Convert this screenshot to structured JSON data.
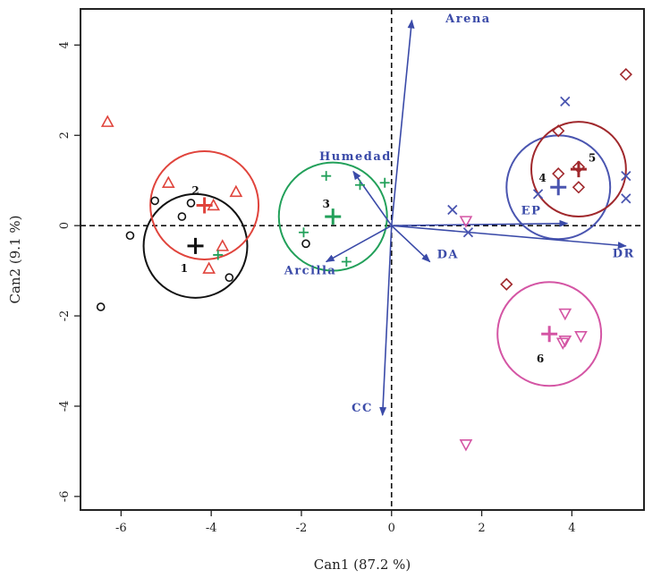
{
  "chart_data": {
    "type": "scatter",
    "xlabel": "Can1 (87.2 %)",
    "ylabel": "Can2 (9.1 %)",
    "xlim": [
      -6.9,
      5.6
    ],
    "ylim": [
      -6.3,
      4.8
    ],
    "xticks": [
      -6,
      -4,
      -2,
      0,
      2,
      4
    ],
    "yticks": [
      -6,
      -4,
      -2,
      0,
      2,
      4
    ],
    "grid": false,
    "groups": [
      {
        "name": "1",
        "color": "#111111",
        "marker": "circle",
        "centroid": [
          -4.35,
          -0.45
        ],
        "radius": 1.15,
        "label_pos": [
          -4.6,
          -0.95
        ],
        "points": [
          [
            -6.45,
            -1.8
          ],
          [
            -5.8,
            -0.22
          ],
          [
            -5.25,
            0.55
          ],
          [
            -4.65,
            0.2
          ],
          [
            -4.45,
            0.5
          ],
          [
            -3.6,
            -1.15
          ],
          [
            -1.9,
            -0.4
          ]
        ]
      },
      {
        "name": "2",
        "color": "#e0443c",
        "marker": "triangle",
        "centroid": [
          -4.15,
          0.45
        ],
        "radius": 1.2,
        "label_pos": [
          -4.35,
          0.78
        ],
        "points": [
          [
            -6.3,
            2.3
          ],
          [
            -4.95,
            0.95
          ],
          [
            -3.95,
            0.45
          ],
          [
            -3.45,
            0.75
          ],
          [
            -3.75,
            -0.45
          ],
          [
            -4.05,
            -0.95
          ]
        ]
      },
      {
        "name": "3",
        "color": "#22a05a",
        "marker": "plus",
        "centroid": [
          -1.3,
          0.2
        ],
        "radius": 1.2,
        "label_pos": [
          -1.45,
          0.48
        ],
        "points": [
          [
            -1.45,
            1.1
          ],
          [
            -0.7,
            0.9
          ],
          [
            -0.15,
            0.95
          ],
          [
            -1.95,
            -0.15
          ],
          [
            -1.0,
            -0.8
          ],
          [
            -3.85,
            -0.65
          ]
        ]
      },
      {
        "name": "4",
        "color": "#4a55b0",
        "marker": "x",
        "centroid": [
          3.7,
          0.85
        ],
        "radius": 1.15,
        "label_pos": [
          3.35,
          1.05
        ],
        "points": [
          [
            3.85,
            2.75
          ],
          [
            5.2,
            1.1
          ],
          [
            5.2,
            0.6
          ],
          [
            3.25,
            0.7
          ],
          [
            1.35,
            0.35
          ],
          [
            1.7,
            -0.15
          ]
        ]
      },
      {
        "name": "5",
        "color": "#a0282c",
        "marker": "diamond",
        "centroid": [
          4.15,
          1.25
        ],
        "radius": 1.05,
        "label_pos": [
          4.45,
          1.5
        ],
        "points": [
          [
            5.2,
            3.35
          ],
          [
            3.7,
            2.1
          ],
          [
            3.7,
            1.15
          ],
          [
            4.15,
            0.85
          ],
          [
            4.15,
            1.3
          ],
          [
            2.55,
            -1.3
          ]
        ]
      },
      {
        "name": "6",
        "color": "#d455a4",
        "marker": "triangle-down",
        "centroid": [
          3.5,
          -2.4
        ],
        "radius": 1.15,
        "label_pos": [
          3.3,
          -2.95
        ],
        "points": [
          [
            1.65,
            0.1
          ],
          [
            3.85,
            -1.95
          ],
          [
            4.2,
            -2.45
          ],
          [
            3.85,
            -2.55
          ],
          [
            3.8,
            -2.6
          ],
          [
            1.65,
            -4.85
          ]
        ]
      }
    ],
    "vectors": [
      {
        "name": "Arena",
        "x": 0.45,
        "y": 4.55,
        "label_pos": [
          1.7,
          4.5
        ]
      },
      {
        "name": "Humedad",
        "x": -0.85,
        "y": 1.2,
        "label_pos": [
          -0.8,
          1.45
        ]
      },
      {
        "name": "EP",
        "x": 3.9,
        "y": 0.05,
        "label_pos": [
          3.1,
          0.25
        ]
      },
      {
        "name": "DR",
        "x": 5.2,
        "y": -0.45,
        "label_pos": [
          5.15,
          -0.7
        ]
      },
      {
        "name": "DA",
        "x": 0.85,
        "y": -0.8,
        "label_pos": [
          1.25,
          -0.72
        ]
      },
      {
        "name": "Arcilla",
        "x": -1.45,
        "y": -0.8,
        "label_pos": [
          -1.8,
          -1.08
        ]
      },
      {
        "name": "CC",
        "x": -0.2,
        "y": -4.2,
        "label_pos": [
          -0.65,
          -4.12
        ]
      }
    ]
  }
}
